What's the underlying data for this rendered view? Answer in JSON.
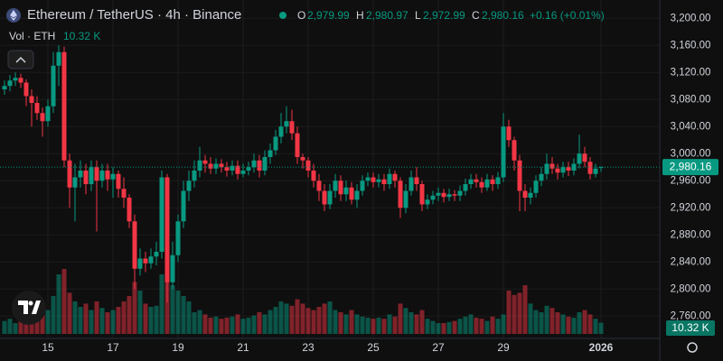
{
  "chart_data": {
    "type": "candlestick",
    "title": "Ethereum / TetherUS · 4h · Binance",
    "legend": {
      "O": "O",
      "open": "2,979.99",
      "H": "H",
      "high": "2,980.97",
      "L": "L",
      "low": "2,972.99",
      "C": "C",
      "close": "2,980.16",
      "change": "+0.16 (+0.01%)"
    },
    "volume_title": "Vol · ETH",
    "up_color": "#089981",
    "down_color": "#f23645",
    "candles": {
      "open": [
        3095,
        3100,
        3108,
        3112,
        3105,
        3085,
        3075,
        3060,
        3048,
        3070,
        3130,
        3150,
        2990,
        2950,
        2965,
        2975,
        2955,
        2980,
        2960,
        2975,
        2962,
        2970,
        2948,
        2935,
        2900,
        2830,
        2845,
        2838,
        2848,
        2855,
        2965,
        2810,
        2850,
        2900,
        2945,
        2960,
        2975,
        2990,
        2985,
        2978,
        2985,
        2980,
        2975,
        2982,
        2970,
        2975,
        2980,
        2990,
        2975,
        2995,
        3005,
        3025,
        3040,
        3048,
        3030,
        2995,
        2990,
        2975,
        2960,
        2945,
        2925,
        2945,
        2960,
        2940,
        2950,
        2932,
        2945,
        2960,
        2965,
        2958,
        2962,
        2955,
        2970,
        2960,
        2920,
        2945,
        2965,
        2955,
        2925,
        2932,
        2938,
        2942,
        2936,
        2940,
        2938,
        2945,
        2955,
        2962,
        2958,
        2950,
        2962,
        2955,
        2965,
        3040,
        3020,
        2990,
        2945,
        2935,
        2942,
        2960,
        2970,
        2985,
        2978,
        2972,
        2980,
        2975,
        2985,
        3000,
        2988,
        2970,
        2979.99
      ],
      "high": [
        3108,
        3116,
        3120,
        3118,
        3110,
        3095,
        3085,
        3068,
        3080,
        3150,
        3160,
        3158,
        3000,
        2985,
        2990,
        2985,
        2990,
        2990,
        2985,
        2985,
        2980,
        2975,
        2965,
        2940,
        2910,
        2860,
        2855,
        2860,
        2870,
        2975,
        2970,
        2870,
        2910,
        2960,
        2975,
        2990,
        3010,
        2998,
        2995,
        2993,
        2992,
        2988,
        2990,
        2990,
        2985,
        2988,
        3000,
        2998,
        3005,
        3015,
        3035,
        3060,
        3070,
        3065,
        3040,
        3000,
        2995,
        2985,
        2970,
        2955,
        2955,
        2970,
        2968,
        2960,
        2958,
        2955,
        2968,
        2972,
        2972,
        2970,
        2970,
        2978,
        2975,
        2965,
        2955,
        2975,
        2980,
        2960,
        2940,
        2945,
        2950,
        2948,
        2948,
        2946,
        2953,
        2963,
        2970,
        2970,
        2965,
        2970,
        2968,
        2973,
        3060,
        3050,
        3025,
        2998,
        2955,
        2950,
        2968,
        2980,
        3000,
        2995,
        2985,
        2988,
        2988,
        2993,
        3028,
        3010,
        2995,
        2985,
        2980.97
      ],
      "low": [
        3087,
        3092,
        3100,
        3097,
        3070,
        3040,
        3050,
        3025,
        3040,
        3060,
        3100,
        2980,
        2920,
        2900,
        2950,
        2940,
        2945,
        2885,
        2950,
        2945,
        2935,
        2935,
        2920,
        2890,
        2800,
        2820,
        2825,
        2830,
        2835,
        2845,
        2780,
        2800,
        2840,
        2890,
        2930,
        2950,
        2965,
        2972,
        2970,
        2970,
        2972,
        2966,
        2968,
        2962,
        2965,
        2968,
        2972,
        2965,
        2968,
        2985,
        2998,
        3015,
        3030,
        3020,
        2985,
        2978,
        2965,
        2950,
        2930,
        2915,
        2918,
        2935,
        2930,
        2930,
        2925,
        2920,
        2938,
        2952,
        2950,
        2950,
        2945,
        2948,
        2950,
        2905,
        2912,
        2938,
        2945,
        2915,
        2918,
        2925,
        2930,
        2928,
        2930,
        2930,
        2930,
        2938,
        2948,
        2950,
        2942,
        2945,
        2945,
        2948,
        2958,
        3010,
        2975,
        2915,
        2915,
        2925,
        2935,
        2952,
        2962,
        2970,
        2962,
        2965,
        2967,
        2968,
        2978,
        2980,
        2962,
        2965,
        2972.99
      ],
      "close": [
        3100,
        3108,
        3112,
        3105,
        3085,
        3075,
        3060,
        3048,
        3070,
        3130,
        3150,
        2990,
        2950,
        2965,
        2975,
        2955,
        2980,
        2960,
        2975,
        2962,
        2970,
        2948,
        2935,
        2900,
        2830,
        2845,
        2838,
        2848,
        2855,
        2965,
        2810,
        2850,
        2900,
        2945,
        2960,
        2975,
        2990,
        2985,
        2978,
        2985,
        2980,
        2975,
        2982,
        2970,
        2975,
        2980,
        2990,
        2975,
        2995,
        3005,
        3025,
        3040,
        3048,
        3030,
        2995,
        2990,
        2975,
        2960,
        2945,
        2925,
        2945,
        2960,
        2940,
        2950,
        2932,
        2945,
        2960,
        2965,
        2958,
        2962,
        2955,
        2970,
        2960,
        2920,
        2945,
        2965,
        2955,
        2925,
        2932,
        2938,
        2942,
        2936,
        2940,
        2938,
        2945,
        2955,
        2962,
        2958,
        2950,
        2962,
        2955,
        2965,
        3040,
        3020,
        2990,
        2945,
        2935,
        2942,
        2960,
        2970,
        2985,
        2978,
        2972,
        2980,
        2975,
        2985,
        3000,
        2988,
        2970,
        2978,
        2980.16
      ],
      "volume": [
        12,
        14,
        10,
        13,
        18,
        15,
        16,
        20,
        22,
        35,
        55,
        60,
        38,
        30,
        25,
        28,
        22,
        30,
        24,
        20,
        22,
        25,
        30,
        35,
        48,
        40,
        28,
        25,
        26,
        55,
        58,
        45,
        40,
        35,
        30,
        20,
        22,
        18,
        15,
        16,
        14,
        15,
        16,
        18,
        14,
        15,
        17,
        20,
        18,
        22,
        25,
        30,
        28,
        26,
        32,
        28,
        24,
        22,
        25,
        28,
        30,
        22,
        20,
        18,
        22,
        18,
        16,
        15,
        14,
        15,
        14,
        18,
        16,
        28,
        24,
        20,
        18,
        22,
        14,
        12,
        10,
        10,
        11,
        12,
        14,
        16,
        18,
        15,
        14,
        12,
        16,
        14,
        18,
        40,
        36,
        38,
        45,
        28,
        22,
        20,
        26,
        24,
        20,
        18,
        16,
        15,
        20,
        22,
        18,
        14,
        10.32
      ]
    },
    "volume_label": "10.32 K",
    "last_price": {
      "value": 2980.16,
      "label": "2,980.16"
    },
    "ylim": [
      2727,
      3227
    ],
    "yticks": [
      {
        "value": 2760,
        "label": "2,760.00"
      },
      {
        "value": 2800,
        "label": "2,800.00"
      },
      {
        "value": 2840,
        "label": "2,840.00"
      },
      {
        "value": 2880,
        "label": "2,880.00"
      },
      {
        "value": 2920,
        "label": "2,920.00"
      },
      {
        "value": 2960,
        "label": "2,960.00"
      },
      {
        "value": 3000,
        "label": "3,000.00"
      },
      {
        "value": 3040,
        "label": "3,040.00"
      },
      {
        "value": 3080,
        "label": "3,080.00"
      },
      {
        "value": 3120,
        "label": "3,120.00"
      },
      {
        "value": 3160,
        "label": "3,160.00"
      },
      {
        "value": 3200,
        "label": "3,200.00"
      }
    ],
    "xticks": [
      {
        "value": 8,
        "label": "15"
      },
      {
        "value": 20,
        "label": "17"
      },
      {
        "value": 32,
        "label": "19"
      },
      {
        "value": 44,
        "label": "21"
      },
      {
        "value": 56,
        "label": "23"
      },
      {
        "value": 68,
        "label": "25"
      },
      {
        "value": 80,
        "label": "27"
      },
      {
        "value": 92,
        "label": "29"
      },
      {
        "value": 110,
        "label": "2026"
      }
    ],
    "grid": true
  }
}
